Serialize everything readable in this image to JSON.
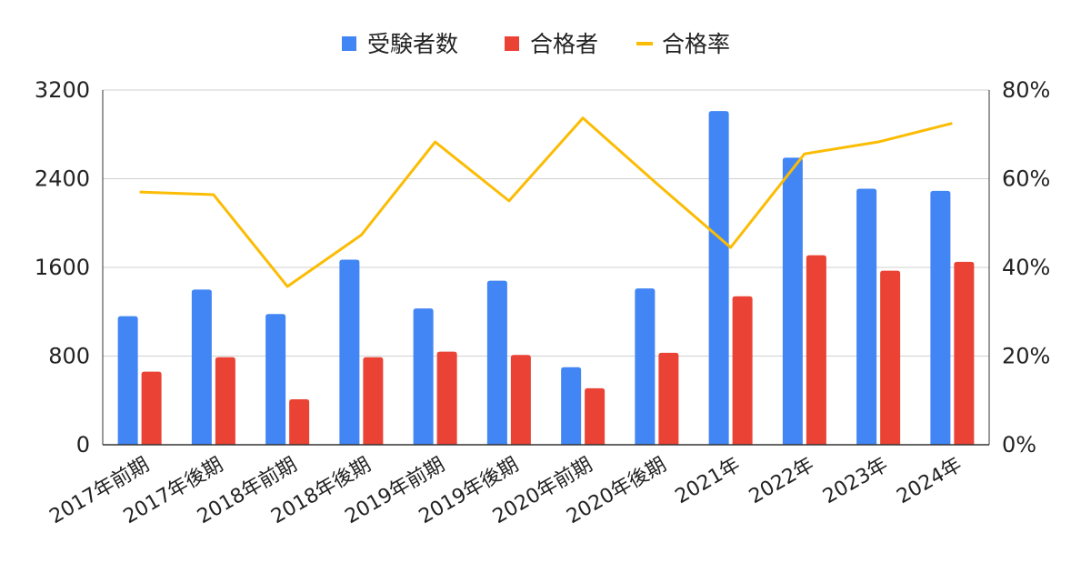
{
  "chart_data": {
    "type": "bar",
    "categories": [
      "2017年前期",
      "2017年後期",
      "2018年前期",
      "2018年後期",
      "2019年前期",
      "2019年後期",
      "2020年前期",
      "2020年後期",
      "2021年",
      "2022年",
      "2023年",
      "2024年"
    ],
    "series": [
      {
        "name": "受験者数",
        "type": "bar",
        "axis": "left",
        "color": "#4285F4",
        "values": [
          1160,
          1400,
          1180,
          1670,
          1230,
          1480,
          700,
          1410,
          3010,
          2590,
          2310,
          2290
        ]
      },
      {
        "name": "合格者",
        "type": "bar",
        "axis": "left",
        "color": "#EA4335",
        "values": [
          660,
          790,
          410,
          790,
          840,
          810,
          510,
          830,
          1340,
          1710,
          1570,
          1650
        ]
      },
      {
        "name": "合格率",
        "type": "line",
        "axis": "right",
        "color": "#FBBC04",
        "values": [
          0.57,
          0.564,
          0.357,
          0.473,
          0.683,
          0.55,
          0.737,
          0.589,
          0.445,
          0.656,
          0.683,
          0.725
        ]
      }
    ],
    "y_left": {
      "min": 0,
      "max": 3200,
      "ticks": [
        0,
        800,
        1600,
        2400,
        3200
      ],
      "tick_labels": [
        "0",
        "800",
        "1600",
        "2400",
        "3200"
      ]
    },
    "y_right": {
      "min": 0,
      "max": 0.8,
      "ticks": [
        0,
        0.2,
        0.4,
        0.6,
        0.8
      ],
      "tick_labels": [
        "0%",
        "20%",
        "40%",
        "60%",
        "80%"
      ]
    },
    "grid": true,
    "legend": "top-center"
  }
}
